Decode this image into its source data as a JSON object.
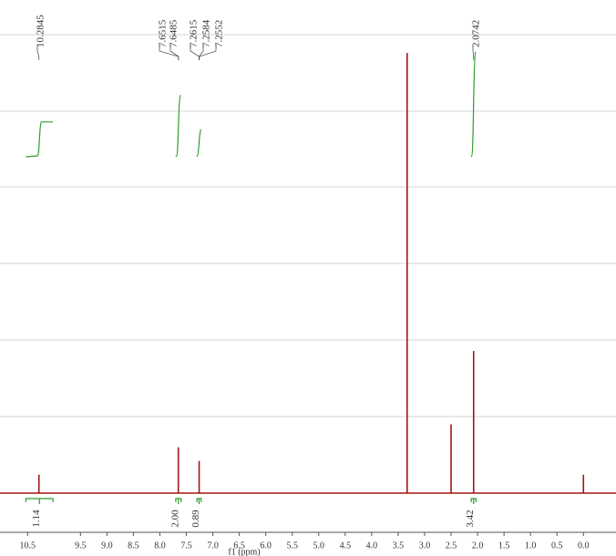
{
  "chart_data": {
    "type": "nmr",
    "x": [
      10.2845,
      7.6515,
      7.2584,
      3.33,
      2.5,
      2.0742,
      0
    ],
    "values": [
      4,
      10,
      7,
      96,
      15,
      31,
      4
    ],
    "color": "#a31515",
    "xlim": [
      11.02,
      -0.615
    ],
    "ylim": [
      0,
      100
    ],
    "xticks": [
      10.5,
      9.5,
      {
        "value": 9,
        "label": "9.0"
      },
      8.5,
      {
        "value": 8,
        "label": "8.0"
      },
      7.5,
      {
        "value": 7,
        "label": "7.0"
      },
      6.5,
      {
        "value": 6,
        "label": "6.0"
      },
      5.5,
      {
        "value": 5,
        "label": "5.0"
      },
      4.5,
      {
        "value": 4,
        "label": "4.0"
      },
      3.5,
      {
        "value": 3,
        "label": "3.0"
      },
      2.5,
      {
        "value": 2,
        "label": "2.0"
      },
      1.5,
      {
        "value": 1,
        "label": "1.0"
      },
      0.5,
      {
        "value": 0,
        "label": "0.0"
      }
    ],
    "xlabel": "f1 (ppm)",
    "peak_labels": [
      10.2845,
      7.6515,
      7.6485,
      7.2615,
      7.2584,
      7.2552,
      2.0742
    ],
    "integrals": [
      1.14,
      {
        "value": 2,
        "label": "2.00"
      },
      0.89,
      3.42
    ],
    "integral_ranges": [
      [
        10.53,
        10.02
      ],
      [
        7.7,
        7.6
      ],
      [
        7.3,
        7.22
      ],
      [
        2.12,
        2.03
      ]
    ],
    "integral_color": "#2e9e2e"
  }
}
